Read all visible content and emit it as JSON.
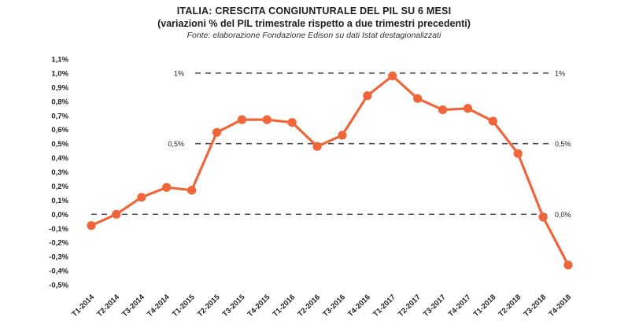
{
  "chart_data": {
    "type": "line",
    "title": "ITALIA: CRESCITA CONGIUNTURALE DEL PIL SU 6 MESI",
    "subtitle": "(variazioni % del PIL trimestrale rispetto a due trimestri precedenti)",
    "source": "Fonte: elaborazione Fondazione Edison su dati Istat destagionalizzati",
    "categories": [
      "T1-2014",
      "T2-2014",
      "T3-2014",
      "T4-2014",
      "T1-2015",
      "T2-2015",
      "T3-2015",
      "T4-2015",
      "T1-2016",
      "T2-2016",
      "T3-2016",
      "T4-2016",
      "T1-2017",
      "T2-2017",
      "T3-2017",
      "T4-2017",
      "T1-2018",
      "T2-2018",
      "T3-2018",
      "T4-2018"
    ],
    "values": [
      -0.08,
      0.0,
      0.12,
      0.19,
      0.17,
      0.58,
      0.67,
      0.67,
      0.65,
      0.48,
      0.56,
      0.84,
      0.98,
      0.82,
      0.74,
      0.75,
      0.66,
      0.43,
      -0.02,
      -0.36
    ],
    "ylim": [
      -0.5,
      1.1
    ],
    "yticks": [
      1.1,
      1.0,
      0.9,
      0.8,
      0.7,
      0.6,
      0.5,
      0.4,
      0.3,
      0.2,
      0.1,
      0.0,
      -0.1,
      -0.2,
      -0.3,
      -0.4,
      -0.5
    ],
    "ytick_labels": [
      "1,1%",
      "1,0%",
      "0,9%",
      "0,8%",
      "0,7%",
      "0,6%",
      "0,5%",
      "0,4%",
      "0,3%",
      "0,2%",
      "0,1%",
      "0,0%",
      "-0,1%",
      "-0,2%",
      "-0,3%",
      "-0,4%",
      "-0,5%"
    ],
    "reference_lines": [
      {
        "value": 1.0,
        "left_label": "1%",
        "right_label": "1%"
      },
      {
        "value": 0.5,
        "left_label": "0,5%",
        "right_label": "0,5%"
      },
      {
        "value": 0.0,
        "left_label": "",
        "right_label": "0,0%"
      }
    ],
    "line_color": "#f0663a",
    "grid": false,
    "legend": "none"
  }
}
